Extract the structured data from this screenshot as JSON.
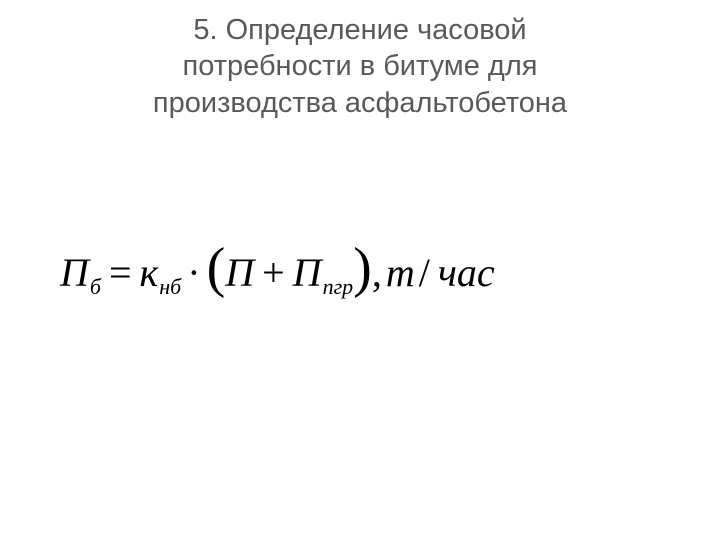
{
  "title": {
    "line1": "5. Определение часовой",
    "line2": "потребности в битуме для",
    "line3": "производства асфальтобетона"
  },
  "formula": {
    "lhs": {
      "base": "П",
      "sub": "б"
    },
    "equals": "=",
    "coef": {
      "base": "к",
      "sub": "нб"
    },
    "dot": "·",
    "lparen": "(",
    "term1": {
      "base": "П"
    },
    "plus": "+",
    "term2": {
      "base": "П",
      "sub": "пгр"
    },
    "rparen": ")",
    "comma": ",",
    "unit_t": "т",
    "slash": "/",
    "unit_time": "час"
  },
  "styles": {
    "title_color": "#595959",
    "title_fontsize": 29,
    "formula_fontsize": 40,
    "sub_fontsize": 22,
    "paren_fontsize": 56,
    "background": "#ffffff",
    "formula_color": "#000000"
  }
}
